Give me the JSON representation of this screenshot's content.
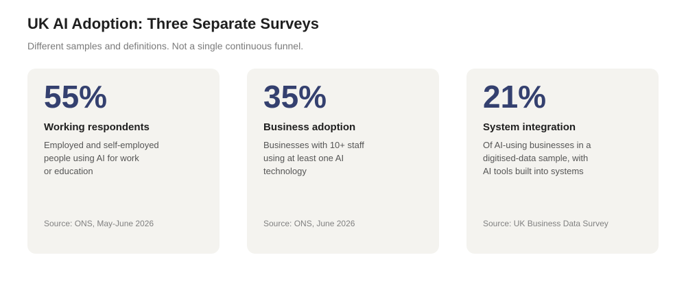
{
  "header": {
    "title": "UK AI Adoption: Three Separate Surveys",
    "subtitle": "Different samples and definitions. Not a single continuous funnel."
  },
  "cards": [
    {
      "stat": "55%",
      "heading": "Working respondents",
      "description_lines": [
        "Employed and self-employed",
        "people using AI for work",
        "or education"
      ],
      "source": "Source: ONS, May-June 2026"
    },
    {
      "stat": "35%",
      "heading": "Business adoption",
      "description_lines": [
        "Businesses with 10+ staff",
        "using at least one AI",
        "technology"
      ],
      "source": "Source: ONS, June 2026"
    },
    {
      "stat": "21%",
      "heading": "System integration",
      "description_lines": [
        "Of AI-using businesses in a",
        "digitised-data sample, with",
        "AI tools built into systems"
      ],
      "source": "Source: UK Business Data Survey"
    }
  ],
  "colors": {
    "stat": "#34406f",
    "card_background": "#f4f3ef",
    "title": "#1f1f1f",
    "subtitle": "#7a7a7a"
  }
}
